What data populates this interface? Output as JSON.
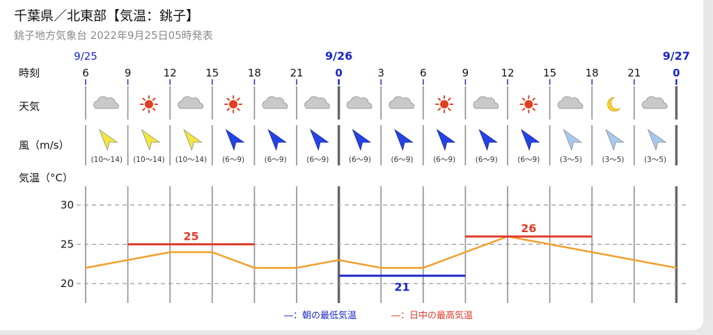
{
  "header": {
    "title": "千葉県／北東部【気温：銚子】",
    "subtitle": "銚子地方気象台 2022年9月25日05時発表"
  },
  "labels": {
    "time": "時刻",
    "weather": "天気",
    "wind": "風（m/s）",
    "temp": "気温（°C）"
  },
  "dates": [
    {
      "label": "9/25",
      "col": 0,
      "bold": false
    },
    {
      "label": "9/26",
      "col": 6,
      "bold": true
    },
    {
      "label": "9/27",
      "col": 14,
      "bold": true
    }
  ],
  "hours": [
    "6",
    "9",
    "12",
    "15",
    "18",
    "21",
    "0",
    "3",
    "6",
    "9",
    "12",
    "15",
    "18",
    "21",
    "0"
  ],
  "weather": [
    "cloudy-icon",
    "sunny-icon",
    "cloudy-icon",
    "sunny-icon",
    "cloudy-icon",
    "cloudy-icon",
    "cloudy-icon",
    "cloudy-icon",
    "sunny-icon",
    "cloudy-icon",
    "sunny-icon",
    "cloudy-icon",
    "moon-icon",
    "cloudy-icon"
  ],
  "wind": [
    {
      "speed": "(10～14)",
      "level": "strong"
    },
    {
      "speed": "(10～14)",
      "level": "strong"
    },
    {
      "speed": "(10～14)",
      "level": "strong"
    },
    {
      "speed": "(6～9)",
      "level": "medium"
    },
    {
      "speed": "(6～9)",
      "level": "medium"
    },
    {
      "speed": "(6～9)",
      "level": "medium"
    },
    {
      "speed": "(6～9)",
      "level": "medium"
    },
    {
      "speed": "(6～9)",
      "level": "medium"
    },
    {
      "speed": "(6～9)",
      "level": "medium"
    },
    {
      "speed": "(6～9)",
      "level": "medium"
    },
    {
      "speed": "(6～9)",
      "level": "medium"
    },
    {
      "speed": "(3～5)",
      "level": "weak"
    },
    {
      "speed": "(3～5)",
      "level": "weak"
    },
    {
      "speed": "(3～5)",
      "level": "weak"
    }
  ],
  "colors": {
    "strong": "#f2e640",
    "medium": "#2443e6",
    "weak": "#a8c8f0",
    "temp_line": "#f0a030",
    "min_line": "#1a27c8",
    "max_line": "#e03a2a",
    "sun": "#e04020"
  },
  "chart_data": {
    "type": "line",
    "x": [
      "9/25 6",
      "9/25 9",
      "9/25 12",
      "9/25 15",
      "9/25 18",
      "9/25 21",
      "9/26 0",
      "9/26 3",
      "9/26 6",
      "9/26 9",
      "9/26 12",
      "9/26 15",
      "9/26 18",
      "9/26 21",
      "9/27 0"
    ],
    "series": [
      {
        "values": [
          22,
          23,
          24,
          24,
          22,
          22,
          23,
          22,
          22,
          24,
          26,
          25,
          24,
          23,
          22
        ]
      }
    ],
    "ylim": [
      18,
      31
    ],
    "yticks": [
      "20",
      "25",
      "30"
    ],
    "max_temp": {
      "value": 25,
      "label": "25",
      "from": 1,
      "to": 4
    },
    "min_temp": {
      "value": 21,
      "label": "21",
      "from": 6,
      "to": 9
    },
    "max_temp2": {
      "value": 26,
      "label": "26",
      "from": 9,
      "to": 12
    }
  },
  "legend": {
    "min": "―：朝の最低気温",
    "max": "―：日中の最高気温"
  }
}
